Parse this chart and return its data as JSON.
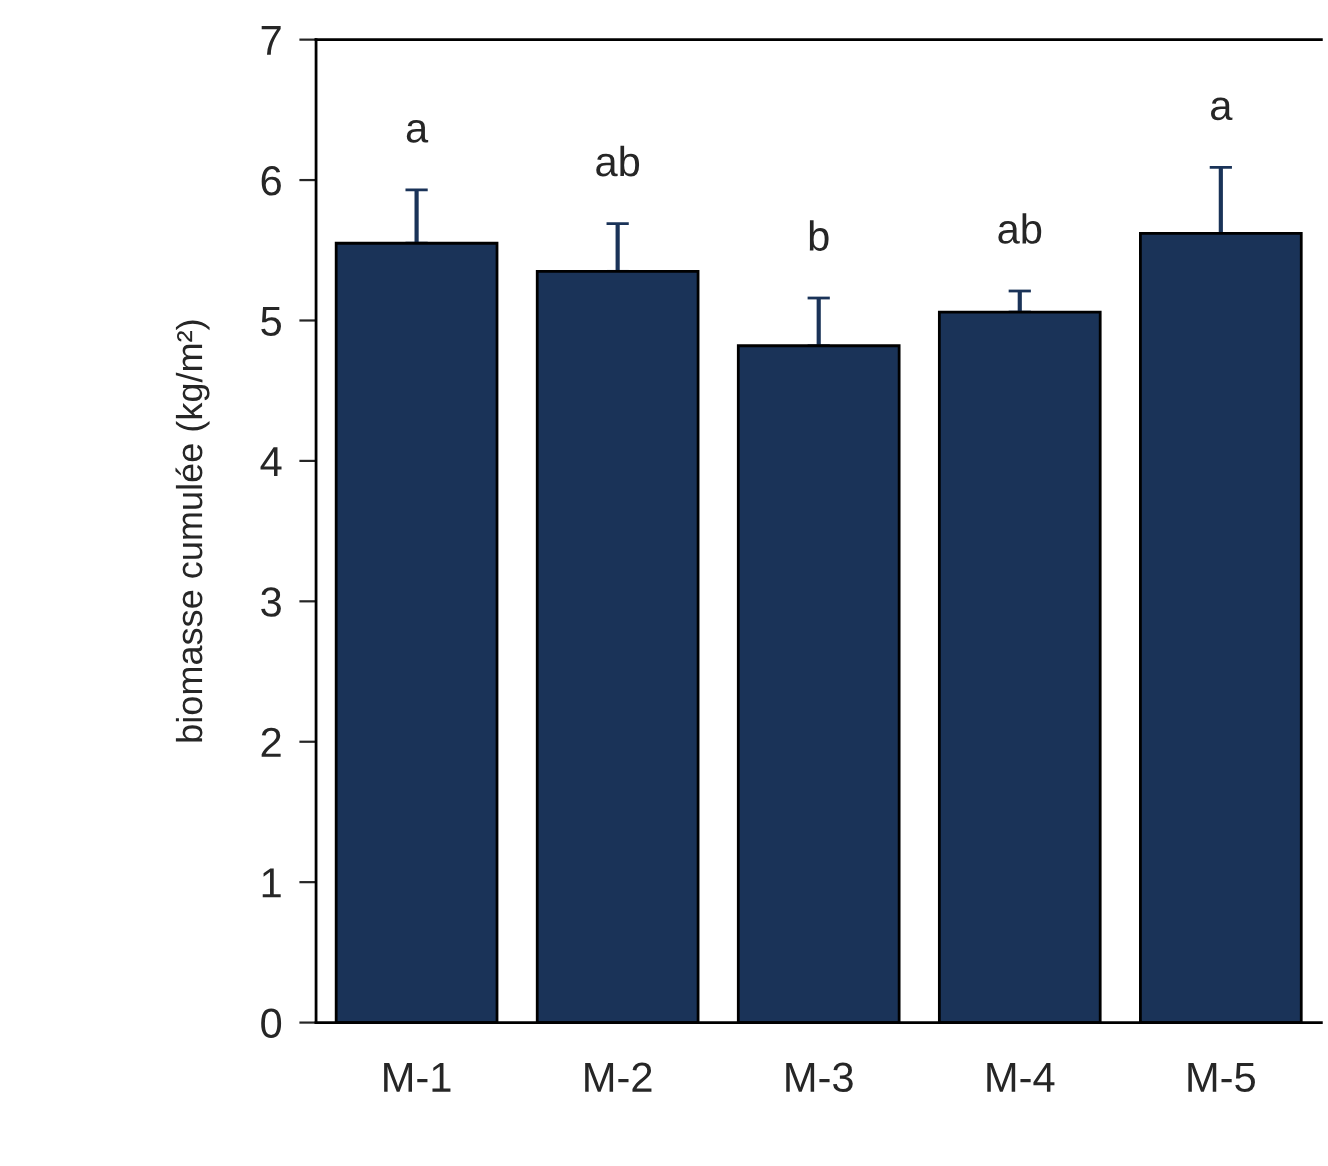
{
  "chart_data": {
    "type": "bar",
    "ylabel": "biomasse cumulée (kg/m²)",
    "categories": [
      "M-1",
      "M-2",
      "M-3",
      "M-4",
      "M-5"
    ],
    "values": [
      5.55,
      5.35,
      4.82,
      5.06,
      5.62
    ],
    "color": "#1a3358",
    "errors": [
      [
        5.55,
        5.93
      ],
      [
        5.35,
        5.69
      ],
      [
        4.82,
        5.16
      ],
      [
        5.06,
        5.21
      ],
      [
        5.62,
        6.09
      ]
    ],
    "ylim": [
      0,
      7
    ],
    "yticks": [
      0,
      1,
      2,
      3,
      4,
      5,
      6,
      7
    ],
    "grid": false,
    "legend": false,
    "annotations": [
      "a",
      "ab",
      "b",
      "ab",
      "a"
    ]
  }
}
